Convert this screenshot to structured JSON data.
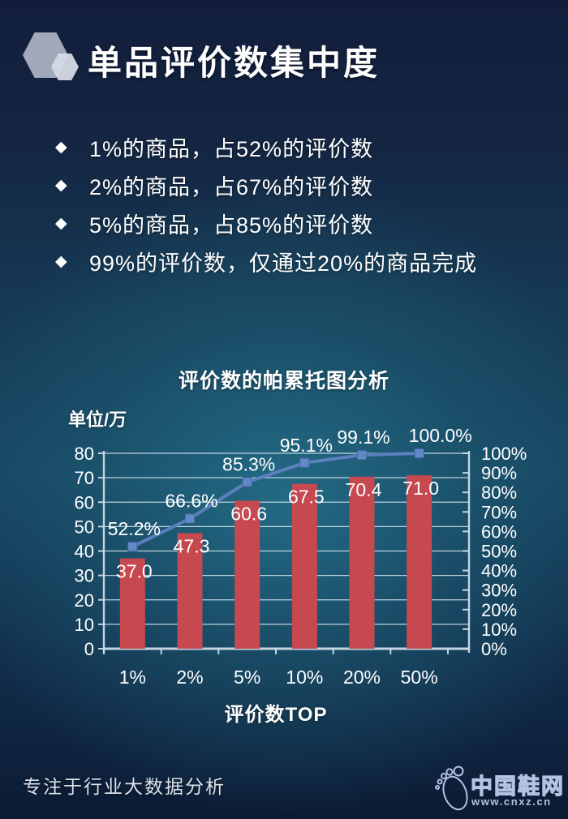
{
  "header": {
    "title": "单品评价数集中度"
  },
  "bullet_icon": "◆",
  "bullets": [
    "1%的商品，占52%的评价数",
    "2%的商品，占67%的评价数",
    "5%的商品，占85%的评价数",
    "99%的评价数，仅通过20%的商品完成"
  ],
  "chart_data": {
    "type": "pareto (bar + cumulative line)",
    "title": "评价数的帕累托图分析",
    "unit_label": "单位/万",
    "xlabel": "评价数TOP",
    "categories": [
      "1%",
      "2%",
      "5%",
      "10%",
      "20%",
      "50%"
    ],
    "series": [
      {
        "name": "bar_series",
        "type": "bar",
        "values": [
          37.0,
          47.3,
          60.6,
          67.5,
          70.4,
          71.0
        ],
        "labels": [
          "37.0",
          "47.3",
          "60.6",
          "67.5",
          "70.4",
          "71.0"
        ],
        "color": "#c6494f"
      },
      {
        "name": "cumulative_line_series",
        "type": "line",
        "values": [
          52.2,
          66.6,
          85.3,
          95.1,
          99.1,
          100.0
        ],
        "labels": [
          "52.2%",
          "66.6%",
          "85.3%",
          "95.1%",
          "99.1%",
          "100.0%"
        ],
        "color": "#5b80bd",
        "marker_color": "#6289c8"
      }
    ],
    "left_axis": {
      "min": 0,
      "max": 80,
      "step": 10,
      "ticks": [
        "0",
        "10",
        "20",
        "30",
        "40",
        "50",
        "60",
        "70",
        "80"
      ]
    },
    "right_axis": {
      "min": 0,
      "max": 100,
      "step": 10,
      "ticks": [
        "0%",
        "10%",
        "20%",
        "30%",
        "40%",
        "50%",
        "60%",
        "70%",
        "80%",
        "90%",
        "100%"
      ]
    },
    "grid": true,
    "legend": "none"
  },
  "footer": {
    "tagline": "专注于行业大数据分析",
    "logo_name": "中国鞋网",
    "logo_url": "www.cnxz.cn"
  },
  "colors": {
    "background_top": "#121d3c",
    "background_center": "#216077",
    "bar": "#c6494f",
    "line": "#5b80bd",
    "grid": "#e8f2f8",
    "text": "#ffffff"
  }
}
